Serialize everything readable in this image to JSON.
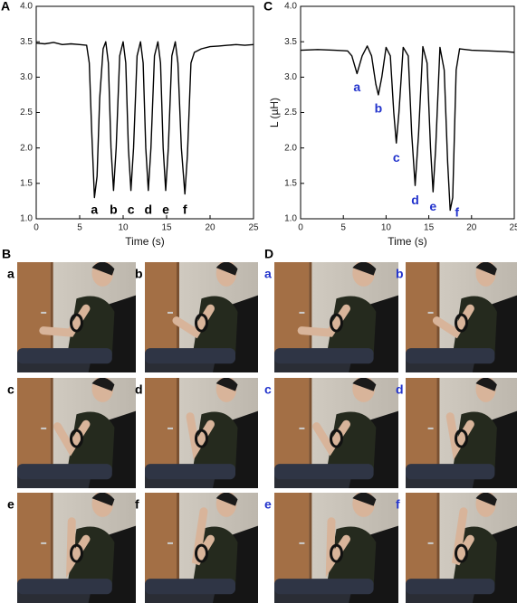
{
  "chart_data": [
    {
      "type": "line",
      "panel": "A",
      "xlabel": "Time (s)",
      "color": "#000000",
      "annotation_color": "#000000",
      "x": [
        0,
        1,
        2,
        3,
        4,
        5,
        5.8,
        6.1,
        6.4,
        6.7,
        7.0,
        7.3,
        7.7,
        8.0,
        8.3,
        8.6,
        8.9,
        9.2,
        9.6,
        10.0,
        10.3,
        10.6,
        10.9,
        11.2,
        11.6,
        12.0,
        12.3,
        12.6,
        12.9,
        13.2,
        13.6,
        14.0,
        14.3,
        14.6,
        14.9,
        15.2,
        15.6,
        16.0,
        16.3,
        16.7,
        17.1,
        17.4,
        17.8,
        18.2,
        19,
        20,
        21,
        22,
        23,
        24,
        25
      ],
      "values": [
        3.48,
        3.47,
        3.49,
        3.46,
        3.47,
        3.46,
        3.45,
        3.2,
        2.2,
        1.3,
        1.6,
        2.7,
        3.4,
        3.5,
        3.2,
        2.0,
        1.4,
        2.0,
        3.3,
        3.5,
        3.2,
        2.0,
        1.4,
        2.0,
        3.3,
        3.5,
        3.2,
        2.0,
        1.4,
        2.0,
        3.3,
        3.5,
        3.2,
        2.0,
        1.4,
        2.0,
        3.3,
        3.5,
        3.2,
        2.0,
        1.35,
        1.9,
        3.2,
        3.35,
        3.4,
        3.43,
        3.44,
        3.45,
        3.46,
        3.45,
        3.46
      ],
      "xlim": [
        0,
        25
      ],
      "xticks": [
        0,
        5,
        10,
        15,
        20,
        25
      ],
      "ylim": [
        1,
        4
      ],
      "yticks": [
        {
          "value": 1,
          "label": "1.0"
        },
        {
          "value": 1.5,
          "label": "1.5"
        },
        {
          "value": 2,
          "label": "2.0"
        },
        {
          "value": 2.5,
          "label": "2.5"
        },
        {
          "value": 3,
          "label": "3.0"
        },
        {
          "value": 3.5,
          "label": "3.5"
        },
        {
          "value": 4,
          "label": "4.0"
        }
      ],
      "annotations": [
        {
          "text": "a",
          "x": 6.7,
          "y": 1.12
        },
        {
          "text": "b",
          "x": 8.9,
          "y": 1.12
        },
        {
          "text": "c",
          "x": 10.9,
          "y": 1.12
        },
        {
          "text": "d",
          "x": 12.9,
          "y": 1.12
        },
        {
          "text": "e",
          "x": 14.9,
          "y": 1.12
        },
        {
          "text": "f",
          "x": 17.1,
          "y": 1.12
        }
      ]
    },
    {
      "type": "line",
      "panel": "C",
      "xlabel": "Time (s)",
      "ylabel": "L (µH)",
      "color": "#000000",
      "annotation_color": "#2233cc",
      "x": [
        0,
        2,
        4,
        5.5,
        6.0,
        6.6,
        7.2,
        7.8,
        8.3,
        8.8,
        9.1,
        9.5,
        10.0,
        10.5,
        10.9,
        11.2,
        11.5,
        12.0,
        12.6,
        13.0,
        13.4,
        13.8,
        14.3,
        14.8,
        15.2,
        15.5,
        15.8,
        16.3,
        16.8,
        17.2,
        17.5,
        17.8,
        18.2,
        18.6,
        20,
        22,
        24,
        25
      ],
      "values": [
        3.38,
        3.39,
        3.38,
        3.37,
        3.3,
        3.05,
        3.3,
        3.44,
        3.3,
        2.9,
        2.75,
        3.0,
        3.42,
        3.3,
        2.5,
        2.07,
        2.5,
        3.42,
        3.3,
        2.2,
        1.47,
        2.2,
        3.43,
        3.2,
        2.0,
        1.38,
        2.0,
        3.42,
        3.1,
        1.8,
        1.12,
        1.3,
        3.1,
        3.4,
        3.38,
        3.37,
        3.36,
        3.35
      ],
      "xlim": [
        0,
        25
      ],
      "xticks": [
        0,
        5,
        10,
        15,
        20,
        25
      ],
      "ylim": [
        1,
        4
      ],
      "yticks": [
        {
          "value": 1,
          "label": "1.0"
        },
        {
          "value": 1.5,
          "label": "1.5"
        },
        {
          "value": 2,
          "label": "2.0"
        },
        {
          "value": 2.5,
          "label": "2.5"
        },
        {
          "value": 3,
          "label": "3.0"
        },
        {
          "value": 3.5,
          "label": "3.5"
        },
        {
          "value": 4,
          "label": "4.0"
        }
      ],
      "annotations": [
        {
          "text": "a",
          "x": 6.6,
          "y": 2.85
        },
        {
          "text": "b",
          "x": 9.1,
          "y": 2.55
        },
        {
          "text": "c",
          "x": 11.2,
          "y": 1.85
        },
        {
          "text": "d",
          "x": 13.4,
          "y": 1.25
        },
        {
          "text": "e",
          "x": 15.5,
          "y": 1.16
        },
        {
          "text": "f",
          "x": 18.3,
          "y": 1.08
        }
      ]
    }
  ],
  "photo_panels": [
    {
      "label": "B",
      "label_color": "#000000",
      "photos": [
        "a",
        "b",
        "c",
        "d",
        "e",
        "f"
      ]
    },
    {
      "label": "D",
      "label_color": "#2233cc",
      "photos": [
        "a",
        "b",
        "c",
        "d",
        "e",
        "f"
      ]
    }
  ]
}
